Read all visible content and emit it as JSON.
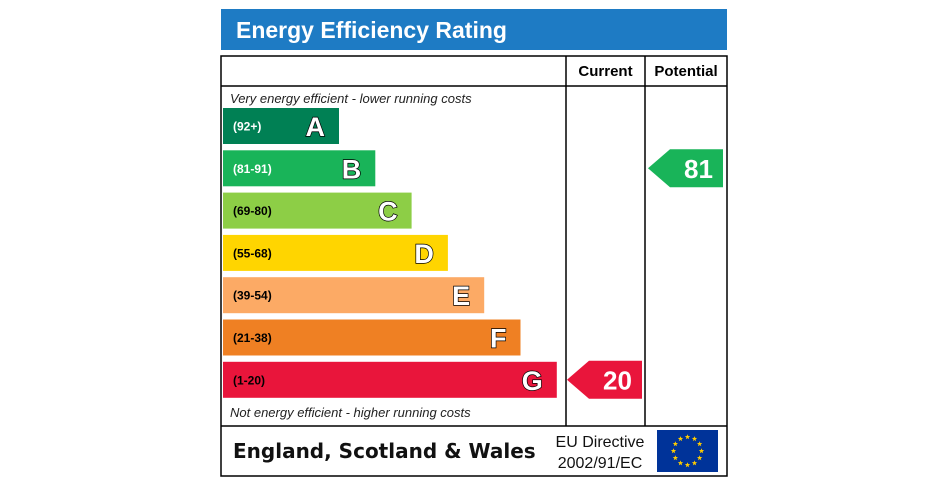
{
  "chart_data": {
    "type": "bar",
    "title": "Energy Efficiency Rating",
    "columns": {
      "current": "Current",
      "potential": "Potential"
    },
    "top_note": "Very energy efficient - lower running costs",
    "bottom_note": "Not energy efficient - higher running costs",
    "bands": [
      {
        "letter": "A",
        "range": "(92+)",
        "color": "#008054",
        "text_color": "#ffffff"
      },
      {
        "letter": "B",
        "range": "(81-91)",
        "color": "#19b459",
        "text_color": "#ffffff"
      },
      {
        "letter": "C",
        "range": "(69-80)",
        "color": "#8dce46",
        "text_color": "#000000"
      },
      {
        "letter": "D",
        "range": "(55-68)",
        "color": "#ffd500",
        "text_color": "#000000"
      },
      {
        "letter": "E",
        "range": "(39-54)",
        "color": "#fcaa65",
        "text_color": "#000000"
      },
      {
        "letter": "F",
        "range": "(21-38)",
        "color": "#ef8023",
        "text_color": "#000000"
      },
      {
        "letter": "G",
        "range": "(1-20)",
        "color": "#e9153b",
        "text_color": "#000000"
      }
    ],
    "current": {
      "value": "20",
      "band": "G",
      "color": "#e9153b"
    },
    "potential": {
      "value": "81",
      "band": "B",
      "color": "#19b459"
    },
    "footer": {
      "region": "England, Scotland & Wales",
      "directive_line1": "EU Directive",
      "directive_line2": "2002/91/EC"
    },
    "colors": {
      "title_bar": "#1e7bc4",
      "eu_flag": "#003399",
      "eu_stars": "#ffcc00"
    }
  }
}
